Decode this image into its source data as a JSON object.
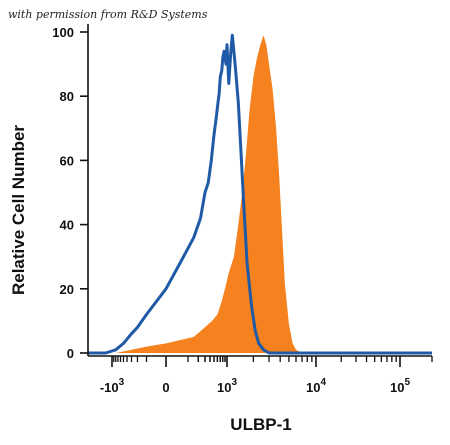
{
  "credit": "with permission from R&D Systems",
  "chart_data": {
    "type": "area",
    "xlabel": "ULBP-1",
    "ylabel": "Relative Cell Number",
    "xscale": "biexponential",
    "xlim": [
      -2000,
      200000
    ],
    "ylim": [
      0,
      100
    ],
    "yticks": [
      0,
      20,
      40,
      60,
      80,
      100
    ],
    "ytick_labels": [
      "0",
      "20",
      "40",
      "60",
      "80",
      "100"
    ],
    "xticks": [
      -1000,
      0,
      1000,
      10000,
      100000
    ],
    "xtick_labels": [
      {
        "base": "-10",
        "exp": "3"
      },
      {
        "base": "0",
        "exp": ""
      },
      {
        "base": "10",
        "exp": "3"
      },
      {
        "base": "10",
        "exp": "4"
      },
      {
        "base": "10",
        "exp": "5"
      }
    ],
    "grid": false,
    "series": [
      {
        "role": "isotype control",
        "style": "outline",
        "color": "#1f5aa6",
        "x": [
          -2000,
          -1200,
          -800,
          -500,
          -300,
          -200,
          -100,
          0,
          60,
          150,
          230,
          300,
          360,
          430,
          500,
          560,
          620,
          660,
          700,
          760,
          800,
          860,
          900,
          950,
          1000,
          1050,
          1100,
          1150,
          1250,
          1350,
          1450,
          1550,
          1700,
          1900,
          2100,
          2300,
          2600,
          3000,
          4000,
          6000,
          10000,
          30000,
          100000,
          200000
        ],
        "y": [
          0,
          0,
          1,
          3,
          6,
          8,
          12,
          20,
          29,
          36,
          42,
          50,
          53,
          60,
          68,
          73,
          78,
          81,
          86,
          88,
          92,
          94,
          92,
          90,
          96,
          84,
          93,
          99,
          89,
          78,
          62,
          47,
          28,
          15,
          7,
          3,
          1,
          0,
          0,
          0,
          0,
          0,
          0,
          0
        ]
      },
      {
        "role": "ULBP-1 stained",
        "style": "filled",
        "color": "#f5821f",
        "x": [
          -2000,
          -800,
          -300,
          -100,
          0,
          150,
          300,
          450,
          600,
          750,
          900,
          1050,
          1200,
          1350,
          1500,
          1650,
          1800,
          2000,
          2200,
          2400,
          2600,
          2800,
          3000,
          3300,
          3600,
          3900,
          4200,
          4500,
          5000,
          5500,
          6000,
          7000,
          8000,
          10000,
          20000,
          50000,
          200000
        ],
        "y": [
          0,
          0,
          1,
          2,
          3,
          5,
          8,
          10,
          12,
          16,
          20,
          25,
          30,
          40,
          50,
          62,
          75,
          86,
          92,
          96,
          99,
          96,
          90,
          82,
          70,
          55,
          38,
          22,
          9,
          3,
          1,
          0,
          0,
          0,
          0,
          0,
          0
        ]
      }
    ]
  }
}
